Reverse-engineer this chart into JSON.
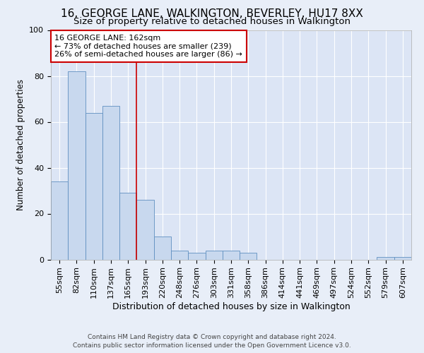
{
  "title": "16, GEORGE LANE, WALKINGTON, BEVERLEY, HU17 8XX",
  "subtitle": "Size of property relative to detached houses in Walkington",
  "xlabel": "Distribution of detached houses by size in Walkington",
  "ylabel": "Number of detached properties",
  "footer_line1": "Contains HM Land Registry data © Crown copyright and database right 2024.",
  "footer_line2": "Contains public sector information licensed under the Open Government Licence v3.0.",
  "categories": [
    "55sqm",
    "82sqm",
    "110sqm",
    "137sqm",
    "165sqm",
    "193sqm",
    "220sqm",
    "248sqm",
    "276sqm",
    "303sqm",
    "331sqm",
    "358sqm",
    "386sqm",
    "414sqm",
    "441sqm",
    "469sqm",
    "497sqm",
    "524sqm",
    "552sqm",
    "579sqm",
    "607sqm"
  ],
  "values": [
    34,
    82,
    64,
    67,
    29,
    26,
    10,
    4,
    3,
    4,
    4,
    3,
    0,
    0,
    0,
    0,
    0,
    0,
    0,
    1,
    1
  ],
  "bar_color": "#c8d8ee",
  "bar_edge_color": "#6090c0",
  "property_label": "16 GEORGE LANE: 162sqm",
  "annotation_line1": "← 73% of detached houses are smaller (239)",
  "annotation_line2": "26% of semi-detached houses are larger (86) →",
  "vline_color": "#cc0000",
  "vline_position": 4.5,
  "annotation_box_edgecolor": "#cc0000",
  "ylim": [
    0,
    100
  ],
  "background_color": "#e8eef8",
  "plot_bg_color": "#dce5f5",
  "grid_color": "#ffffff",
  "title_fontsize": 11,
  "subtitle_fontsize": 9.5,
  "tick_fontsize": 8,
  "ylabel_fontsize": 8.5,
  "xlabel_fontsize": 9,
  "footer_fontsize": 6.5
}
